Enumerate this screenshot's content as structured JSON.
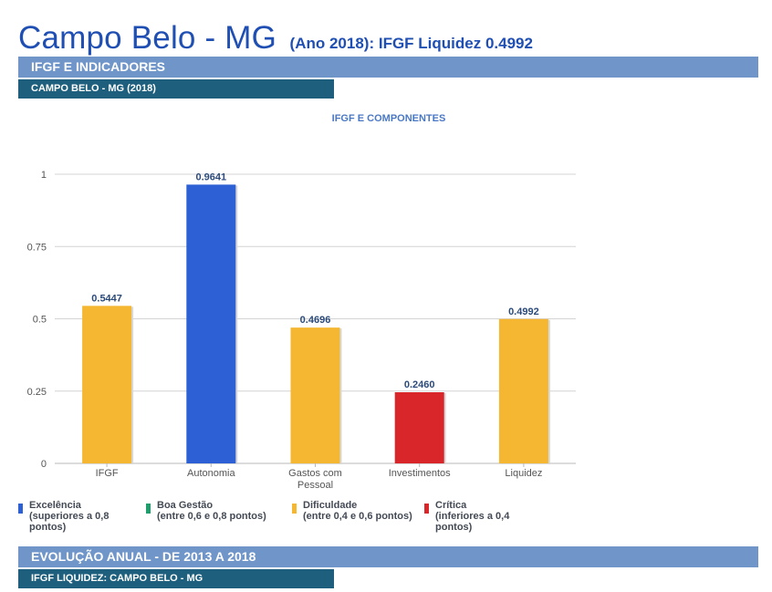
{
  "header": {
    "title": "Campo Belo - MG",
    "subtitle": "(Ano 2018): IFGF Liquidez  0.4992"
  },
  "section1": {
    "band_label": "IFGF E INDICADORES",
    "sub_label": "CAMPO BELO - MG (2018)"
  },
  "section2": {
    "band_label": "EVOLUÇÃO ANUAL - DE 2013 A 2018",
    "sub_label": "IFGF LIQUIDEZ: CAMPO BELO - MG"
  },
  "legend": [
    {
      "line1": "Excelência",
      "line2": "(superiores a 0,8",
      "line3": "pontos)",
      "color": "#2d5fd5"
    },
    {
      "line1": "Boa Gestão",
      "line2": "(entre 0,6 e 0,8 pontos)",
      "line3": "",
      "color": "#1e9e6a"
    },
    {
      "line1": "Dificuldade",
      "line2": "(entre 0,4 e 0,6 pontos)",
      "line3": "",
      "color": "#f5b731"
    },
    {
      "line1": "Crítica",
      "line2": "(inferiores a 0,4",
      "line3": "pontos)",
      "color": "#d9262a"
    }
  ],
  "chart_data": {
    "type": "bar",
    "title": "IFGF E COMPONENTES",
    "categories": [
      "IFGF",
      "Autonomia",
      "Gastos com Pessoal",
      "Investimentos",
      "Liquidez"
    ],
    "category_lines": [
      [
        "IFGF"
      ],
      [
        "Autonomia"
      ],
      [
        "Gastos com",
        "Pessoal"
      ],
      [
        "Investimentos"
      ],
      [
        "Liquidez"
      ]
    ],
    "values": [
      0.5447,
      0.9641,
      0.4696,
      0.246,
      0.4992
    ],
    "value_labels": [
      "0.5447",
      "0.9641",
      "0.4696",
      "0.2460",
      "0.4992"
    ],
    "bar_colors": [
      "#f5b731",
      "#2d5fd5",
      "#f5b731",
      "#d9262a",
      "#f5b731"
    ],
    "yticks": [
      0,
      0.25,
      0.5,
      0.75,
      1
    ],
    "ytick_labels": [
      "0",
      "0.25",
      "0.5",
      "0.75",
      "1"
    ],
    "ylim": [
      0,
      1
    ],
    "grid": true,
    "legend_position": "bottom"
  }
}
